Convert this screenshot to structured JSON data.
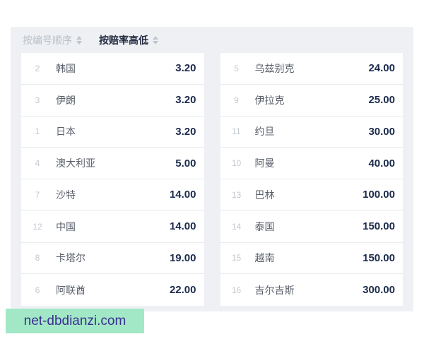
{
  "sort_bar": {
    "options": [
      {
        "label": "按编号顺序",
        "active": false
      },
      {
        "label": "按赔率高低",
        "active": true
      }
    ]
  },
  "tables": {
    "left": [
      {
        "index": "2",
        "team": "韩国",
        "odds": "3.20"
      },
      {
        "index": "3",
        "team": "伊朗",
        "odds": "3.20"
      },
      {
        "index": "1",
        "team": "日本",
        "odds": "3.20"
      },
      {
        "index": "4",
        "team": "澳大利亚",
        "odds": "5.00"
      },
      {
        "index": "7",
        "team": "沙特",
        "odds": "14.00"
      },
      {
        "index": "12",
        "team": "中国",
        "odds": "14.00"
      },
      {
        "index": "8",
        "team": "卡塔尔",
        "odds": "19.00"
      },
      {
        "index": "6",
        "team": "阿联酋",
        "odds": "22.00"
      }
    ],
    "right": [
      {
        "index": "5",
        "team": "乌兹别克",
        "odds": "24.00"
      },
      {
        "index": "9",
        "team": "伊拉克",
        "odds": "25.00"
      },
      {
        "index": "11",
        "team": "约旦",
        "odds": "30.00"
      },
      {
        "index": "10",
        "team": "阿曼",
        "odds": "40.00"
      },
      {
        "index": "13",
        "team": "巴林",
        "odds": "100.00"
      },
      {
        "index": "14",
        "team": "泰国",
        "odds": "150.00"
      },
      {
        "index": "15",
        "team": "越南",
        "odds": "150.00"
      },
      {
        "index": "16",
        "team": "吉尔吉斯",
        "odds": "300.00"
      }
    ]
  },
  "watermark": {
    "text": "net-dbdianzi.com"
  },
  "colors": {
    "panel_bg": "#eef0f3",
    "row_bg": "#ffffff",
    "separator": "#e9ebee",
    "index_color": "#c4c8cf",
    "team_color": "#5b616b",
    "odds_color": "#1b2b4d",
    "sort_inactive": "#b9bfc8",
    "sort_active": "#232c40",
    "sorter_icon": "#c0c4cc",
    "wm_bg": "#a2e8c6",
    "wm_fg": "#3b2e91"
  }
}
